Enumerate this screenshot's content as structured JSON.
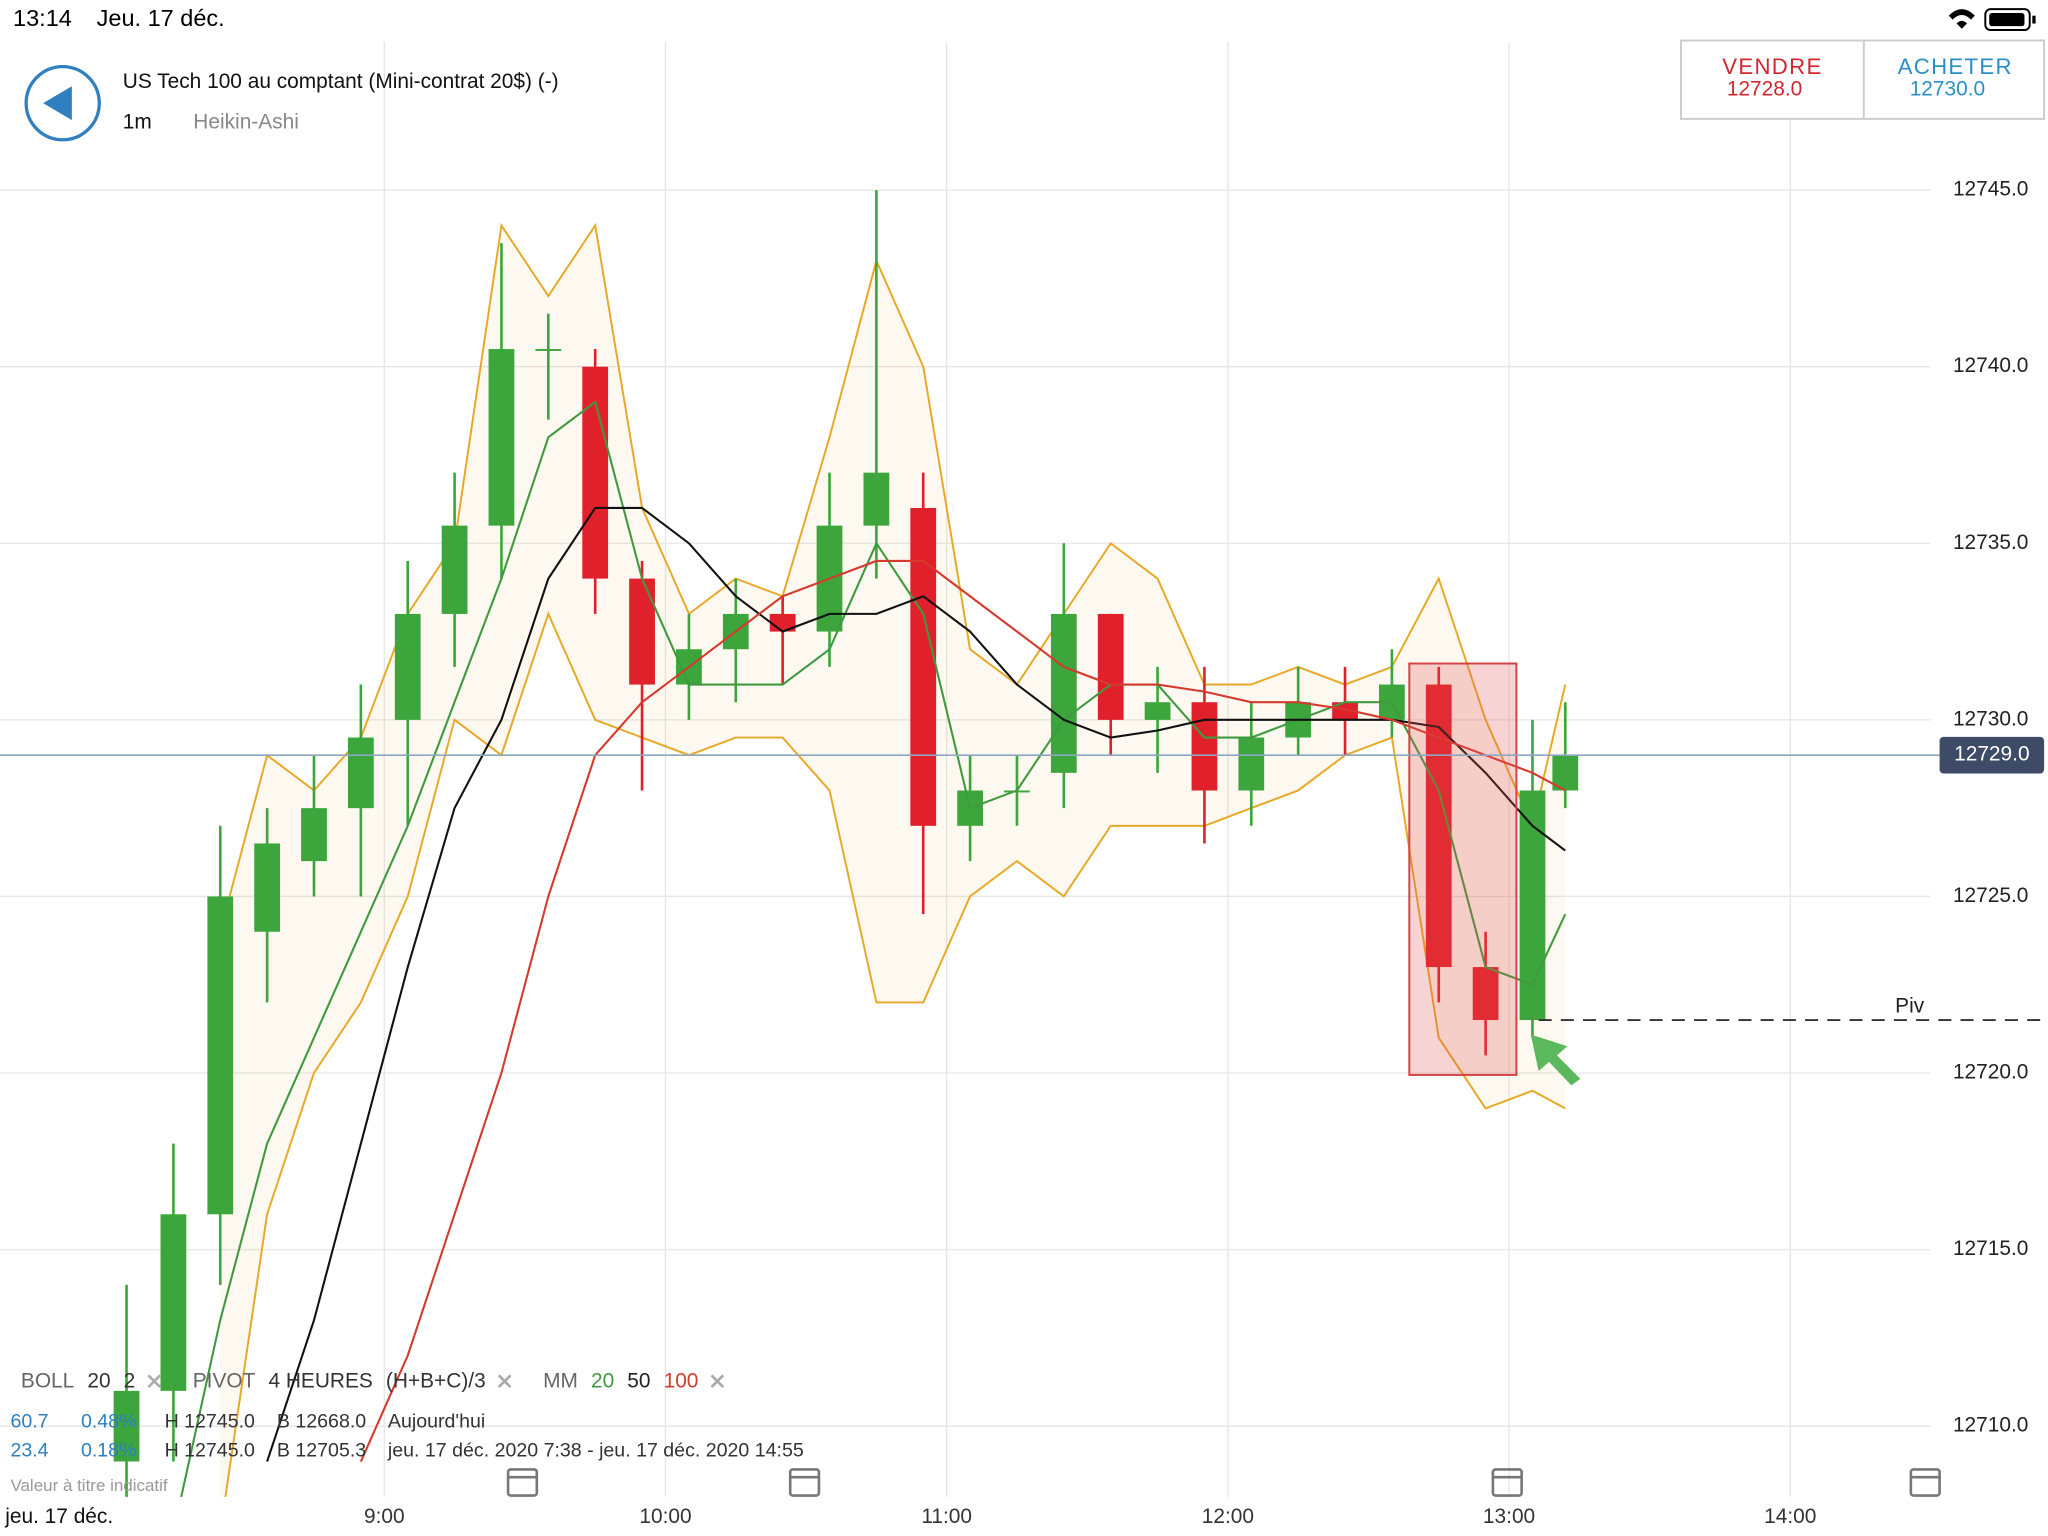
{
  "status_bar": {
    "time": "13:14",
    "date": "Jeu. 17 déc."
  },
  "instrument": {
    "title": "US Tech 100 au comptant (Mini-contrat 20$) (-)",
    "interval": "1m",
    "style": "Heikin-Ashi"
  },
  "trade_buttons": [
    {
      "label": "VENDRE",
      "price": "12728.0",
      "color": "#d0282e"
    },
    {
      "label": "ACHETER",
      "price": "12730.0",
      "color": "#2a8fc8"
    }
  ],
  "chart_data": {
    "type": "candlestick",
    "x": [
      "8:05",
      "8:15",
      "8:25",
      "8:35",
      "8:45",
      "8:55",
      "9:05",
      "9:15",
      "9:25",
      "9:35",
      "9:45",
      "9:55",
      "10:05",
      "10:15",
      "10:25",
      "10:35",
      "10:45",
      "10:55",
      "11:05",
      "11:15",
      "11:25",
      "11:35",
      "11:45",
      "11:55",
      "12:05",
      "12:15",
      "12:25",
      "12:35",
      "12:45",
      "12:55",
      "13:05",
      "13:12"
    ],
    "open": [
      12709,
      12711,
      12716,
      12724,
      12726,
      12727.5,
      12730,
      12733,
      12735.5,
      12740.5,
      12740,
      12734,
      12731,
      12732,
      12733,
      12732.5,
      12735.5,
      12736,
      12727,
      12728,
      12728.5,
      12733,
      12730,
      12730.5,
      12728,
      12729.5,
      12730.5,
      12730,
      12731,
      12723,
      12721.5,
      12728
    ],
    "high": [
      12714,
      12718,
      12727,
      12727.5,
      12729,
      12731,
      12734.5,
      12737,
      12743.5,
      12741.5,
      12740.5,
      12734.5,
      12733,
      12734,
      12733.5,
      12737,
      12745,
      12737,
      12729,
      12729,
      12735,
      12733,
      12731.5,
      12731.5,
      12730.5,
      12731.5,
      12731.5,
      12732,
      12731.5,
      12724,
      12730,
      12730.5
    ],
    "low": [
      12707,
      12709,
      12714,
      12722,
      12725,
      12725,
      12727,
      12731.5,
      12734,
      12738.5,
      12733,
      12728,
      12730,
      12730.5,
      12731,
      12731.5,
      12734,
      12724.5,
      12726,
      12727,
      12727.5,
      12729,
      12728.5,
      12726.5,
      12727,
      12729,
      12729,
      12729.5,
      12722,
      12720.5,
      12721,
      12727.5
    ],
    "close": [
      12711,
      12716,
      12725,
      12726.5,
      12727.5,
      12729.5,
      12733,
      12735.5,
      12740.5,
      12740.5,
      12734,
      12731,
      12732,
      12733,
      12732.5,
      12735.5,
      12737,
      12727,
      12728,
      12728,
      12733,
      12730,
      12730.5,
      12728,
      12729.5,
      12730.5,
      12730,
      12731,
      12723,
      12721.5,
      12728,
      12729
    ],
    "up_color": "#3ca63c",
    "down_color": "#e0202a",
    "series": [
      {
        "name": "20",
        "color": "#3f9a3f",
        "values": [
          null,
          12707,
          12713,
          12718,
          12721,
          12724,
          12727,
          12730.5,
          12734,
          12738,
          12739,
          12734,
          12731,
          12731,
          12731,
          12732,
          12735,
          12733,
          12727.5,
          12728,
          12730,
          12731,
          12731,
          12729.5,
          12729.5,
          12730,
          12730.5,
          12730.5,
          12728,
          12723,
          12722.5,
          12724.5
        ]
      },
      {
        "name": "50",
        "color": "#111111",
        "values": [
          null,
          null,
          null,
          12709,
          12713,
          12718,
          12723,
          12727.5,
          12730,
          12734,
          12736,
          12736,
          12735,
          12733.5,
          12732.5,
          12733,
          12733,
          12733.5,
          12732.5,
          12731,
          12730,
          12729.5,
          12729.7,
          12730,
          12730,
          12730,
          12730,
          12730,
          12729.8,
          12728.5,
          12727,
          12726.3
        ]
      },
      {
        "name": "100",
        "color": "#d43a2e",
        "values": [
          null,
          null,
          null,
          null,
          null,
          12709,
          12712,
          12716,
          12720,
          12725,
          12729,
          12730.5,
          12731.5,
          12732.5,
          12733.5,
          12734,
          12734.5,
          12734.5,
          12733.5,
          12732.5,
          12731.5,
          12731,
          12731,
          12730.8,
          12730.5,
          12730.5,
          12730.3,
          12730,
          12729.5,
          12729,
          12728.5,
          12728
        ]
      }
    ],
    "bollinger": {
      "color": "#e8a826",
      "upper": [
        null,
        null,
        12724,
        12729,
        12728,
        12729.5,
        12733,
        12735,
        12744,
        12742,
        12744,
        12736,
        12733,
        12734,
        12733.5,
        12738,
        12743,
        12740,
        12732,
        12731,
        12733,
        12735,
        12734,
        12731,
        12731,
        12731.5,
        12731,
        12731.5,
        12734,
        12730,
        12727,
        12731
      ],
      "lower": [
        null,
        null,
        12707,
        12716,
        12720,
        12722,
        12725,
        12730,
        12729,
        12733,
        12730,
        12729.5,
        12729,
        12729.5,
        12729.5,
        12728,
        12722,
        12722,
        12725,
        12726,
        12725,
        12727,
        12727,
        12727,
        12727.5,
        12728,
        12729,
        12729.5,
        12721,
        12719,
        12719.5,
        12719
      ]
    },
    "xlim": [
      "7:38",
      "14:55"
    ],
    "xticks": [
      "9:00",
      "10:00",
      "11:00",
      "12:00",
      "13:00",
      "14:00"
    ],
    "ylim": [
      12708.0,
      12749.2
    ],
    "yticks": [
      {
        "value": 12710,
        "label": "12710.0"
      },
      {
        "value": 12715,
        "label": "12715.0"
      },
      {
        "value": 12720,
        "label": "12720.0"
      },
      {
        "value": 12725,
        "label": "12725.0"
      },
      {
        "value": 12730,
        "label": "12730.0"
      },
      {
        "value": 12735,
        "label": "12735.0"
      },
      {
        "value": 12740,
        "label": "12740.0"
      },
      {
        "value": 12745,
        "label": "12745.0"
      }
    ],
    "grid": true,
    "last_price": {
      "value": 12729,
      "label": "12729.0"
    },
    "pivot": {
      "label": "Piv",
      "value": 12721.5
    },
    "date_label": "jeu. 17 déc.",
    "indicators": [
      {
        "name": "BOLL",
        "params": [
          "20",
          "2"
        ]
      },
      {
        "name": "PIVOT",
        "params": [
          "4 HEURES",
          "(H+B+C)/3"
        ]
      },
      {
        "name": "MM"
      }
    ],
    "info_rows": [
      [
        "60.7",
        "0.48%",
        "H 12745.0",
        "B 12668.0",
        "Aujourd'hui"
      ],
      [
        "23.4",
        "0.18%",
        "H 12745.0",
        "B 12705.3",
        "jeu. 17 déc. 2020 7:38 - jeu. 17 déc. 2020 14:55"
      ]
    ],
    "note": "Valeur à titre indicatif"
  }
}
